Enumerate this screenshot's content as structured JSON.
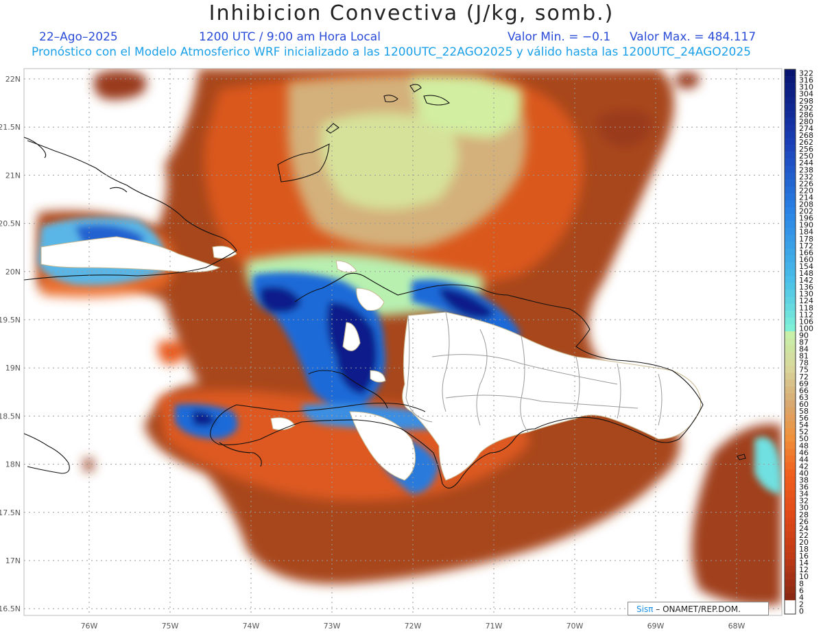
{
  "title": "Inhibicion Convectiva (J/kg, somb.)",
  "date": "22–Ago–2025",
  "time": "1200 UTC / 9:00 am Hora Local",
  "valmin": "Valor Min. = −0.1",
  "valmax": "Valor Max. = 484.117",
  "forecast": "Pronóstico con el Modelo Atmosferico WRF inicializado a las 1200UTC_22AGO2025 y válido hasta las  1200UTC_24AGO2025",
  "credit": {
    "logo": "Sisπ",
    "text": "– ONAMET/REP.DOM."
  },
  "lat_labels": [
    "22N",
    "21.5N",
    "21N",
    "20.5N",
    "20N",
    "19.5N",
    "19N",
    "18.5N",
    "18N",
    "17.5N",
    "17N",
    "16.5N"
  ],
  "lon_labels": [
    "76W",
    "75W",
    "74W",
    "73W",
    "72W",
    "71W",
    "70W",
    "69W",
    "68W"
  ],
  "colorbar_levels": [
    "322",
    "316",
    "310",
    "304",
    "298",
    "292",
    "286",
    "280",
    "274",
    "268",
    "262",
    "256",
    "250",
    "244",
    "238",
    "232",
    "226",
    "220",
    "214",
    "208",
    "202",
    "196",
    "190",
    "184",
    "178",
    "172",
    "166",
    "160",
    "154",
    "148",
    "142",
    "136",
    "130",
    "124",
    "118",
    "112",
    "106",
    "100",
    "90",
    "87",
    "84",
    "81",
    "78",
    "75",
    "72",
    "69",
    "66",
    "63",
    "60",
    "58",
    "56",
    "54",
    "52",
    "50",
    "48",
    "46",
    "44",
    "42",
    "40",
    "38",
    "36",
    "34",
    "32",
    "30",
    "28",
    "26",
    "24",
    "22",
    "20",
    "18",
    "16",
    "14",
    "12",
    "10",
    "8",
    "6",
    "4",
    "2",
    "0"
  ],
  "colors": {
    "high": "#0a1f8a",
    "blue": "#1e78e0",
    "cyan": "#6fe0e0",
    "green": "#c8f0a0",
    "tan": "#d8b880",
    "orange": "#e85a1c",
    "brown": "#9a3a1a"
  }
}
